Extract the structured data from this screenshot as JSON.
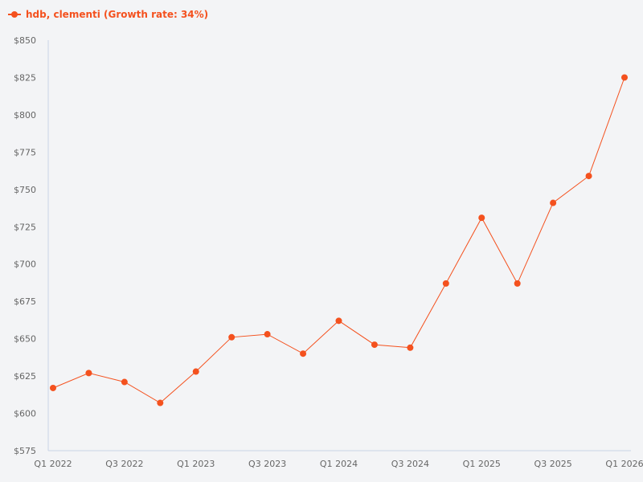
{
  "legend": {
    "label": "hdb, clementi (Growth rate: 34%)",
    "color": "#f4511e"
  },
  "chart_data": {
    "type": "line",
    "title": "",
    "xlabel": "",
    "ylabel": "",
    "ylim": [
      575,
      850
    ],
    "y_ticks": [
      "$575",
      "$600",
      "$625",
      "$650",
      "$675",
      "$700",
      "$725",
      "$750",
      "$775",
      "$800",
      "$825",
      "$850"
    ],
    "x_ticks": [
      "Q1 2022",
      "Q3 2022",
      "Q1 2023",
      "Q3 2023",
      "Q1 2024",
      "Q3 2024",
      "Q1 2025",
      "Q3 2025",
      "Q1 2026"
    ],
    "grid": false,
    "legend_position": "top-left",
    "x": [
      "Q1 2022",
      "Q2 2022",
      "Q3 2022",
      "Q4 2022",
      "Q1 2023",
      "Q2 2023",
      "Q3 2023",
      "Q4 2023",
      "Q1 2024",
      "Q2 2024",
      "Q3 2024",
      "Q4 2024",
      "Q1 2025",
      "Q2 2025",
      "Q3 2025",
      "Q4 2025",
      "Q1 2026"
    ],
    "series": [
      {
        "name": "hdb, clementi (Growth rate: 34%)",
        "color": "#f4511e",
        "values": [
          617,
          627,
          621,
          607,
          628,
          651,
          653,
          640,
          662,
          646,
          644,
          687,
          731,
          687,
          741,
          759,
          825
        ]
      }
    ]
  }
}
